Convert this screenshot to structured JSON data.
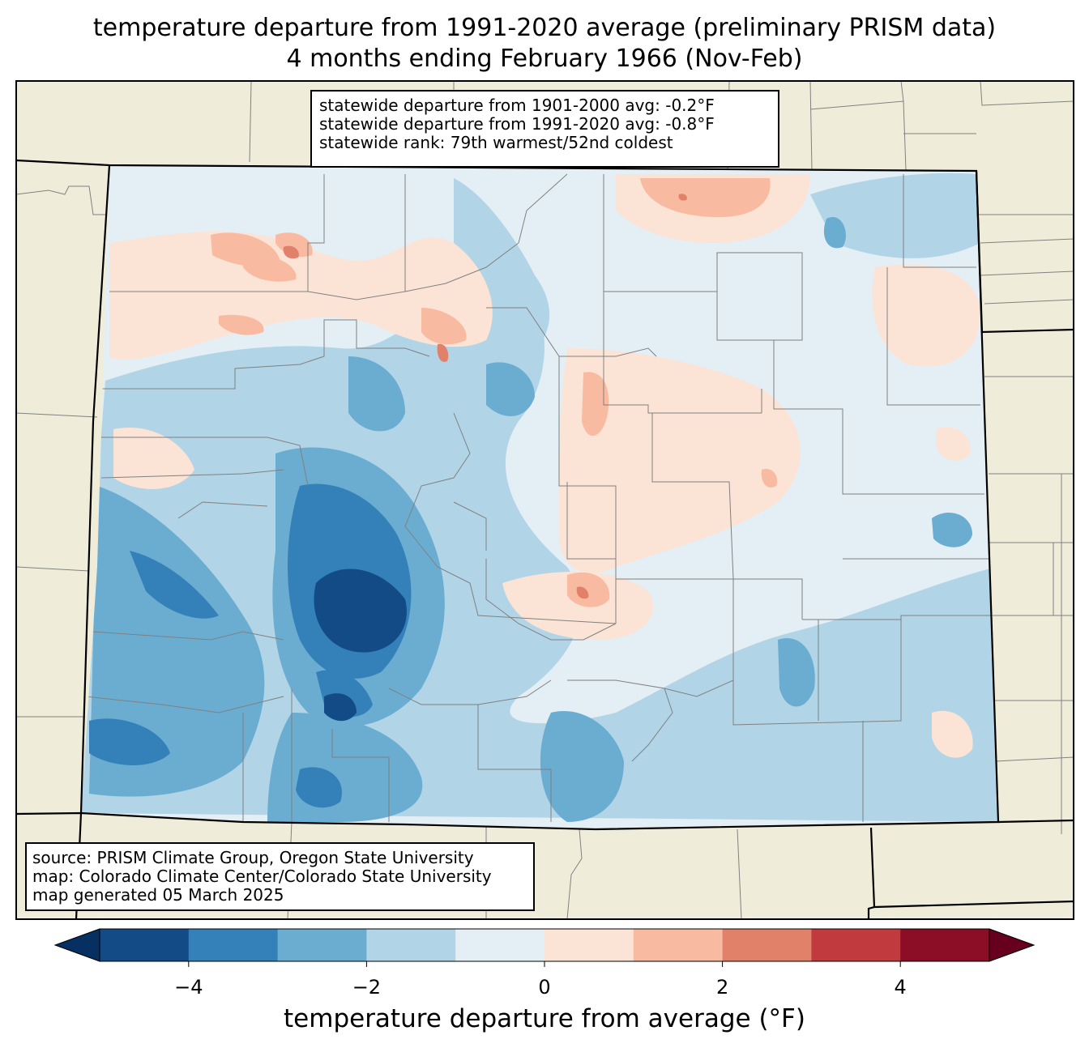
{
  "title": {
    "line1": "temperature departure from 1991-2020 average (preliminary PRISM data)",
    "line2": "4 months ending February 1966 (Nov-Feb)"
  },
  "stats": {
    "line1": "statewide departure from 1901-2000 avg: -0.2°F",
    "line2": "statewide departure from 1991-2020 avg: -0.8°F",
    "line3": "statewide rank: 79th warmest/52nd coldest"
  },
  "source": {
    "line1": "source: PRISM Climate Group, Oregon State University",
    "line2": "map: Colorado Climate Center/Colorado State University",
    "line3": "map generated 05 March 2025"
  },
  "colorbar": {
    "label": "temperature departure from average (°F)",
    "min": -5,
    "max": 5,
    "ticks": [
      {
        "value": -4,
        "label": "−4"
      },
      {
        "value": -2,
        "label": "−2"
      },
      {
        "value": 0,
        "label": "0"
      },
      {
        "value": 2,
        "label": "2"
      },
      {
        "value": 4,
        "label": "4"
      }
    ],
    "bins": [
      {
        "from": -5,
        "to": -4,
        "color": "#134b87"
      },
      {
        "from": -4,
        "to": -3,
        "color": "#3480b9"
      },
      {
        "from": -3,
        "to": -2,
        "color": "#6bacd1"
      },
      {
        "from": -2,
        "to": -1,
        "color": "#b1d5e7"
      },
      {
        "from": -1,
        "to": 0,
        "color": "#e4eef5"
      },
      {
        "from": 0,
        "to": 1,
        "color": "#fbe4d6"
      },
      {
        "from": 1,
        "to": 2,
        "color": "#f8bba1"
      },
      {
        "from": 2,
        "to": 3,
        "color": "#e2816a"
      },
      {
        "from": 3,
        "to": 4,
        "color": "#c13a3d"
      },
      {
        "from": 4,
        "to": 5,
        "color": "#8b0d26"
      }
    ],
    "under_color": "#053061",
    "over_color": "#67001f"
  },
  "colors": {
    "land_outside": "#efedda",
    "state_border": "#000000",
    "county_border": "#808080"
  }
}
